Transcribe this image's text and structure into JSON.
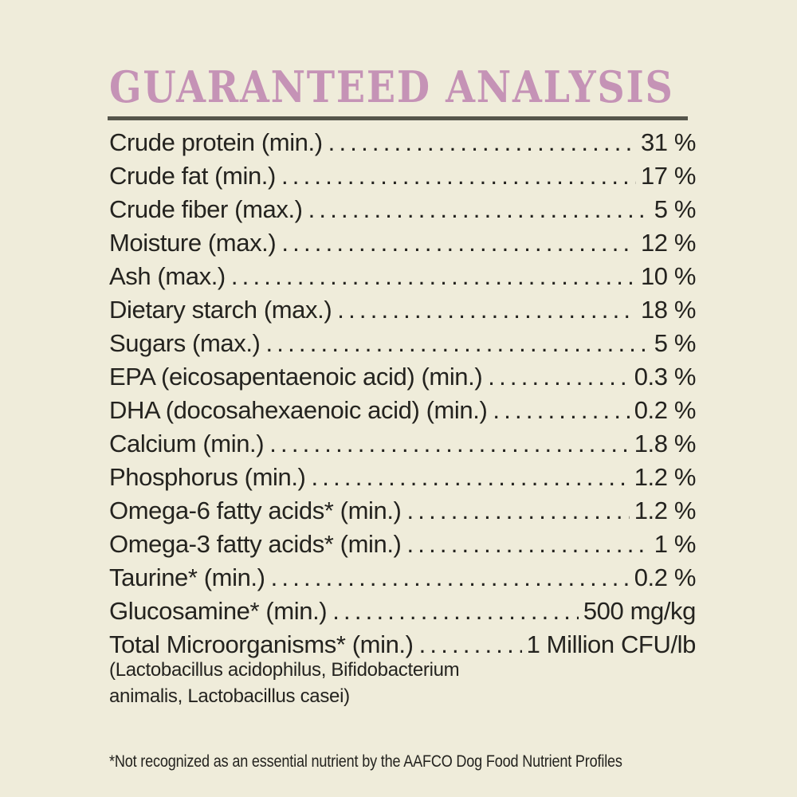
{
  "colors": {
    "background": "#efecda",
    "text": "#24231f",
    "header": "#c593b6",
    "rule": "#55554b"
  },
  "header": {
    "title": "GUARANTEED ANALYSIS"
  },
  "analysis": {
    "rows": [
      {
        "label": "Crude protein (min.)",
        "value": "31 %"
      },
      {
        "label": "Crude fat (min.)",
        "value": "17 %"
      },
      {
        "label": "Crude fiber (max.)",
        "value": "5 %"
      },
      {
        "label": "Moisture (max.)",
        "value": "12 %"
      },
      {
        "label": "Ash (max.)",
        "value": "10 %"
      },
      {
        "label": "Dietary starch (max.)",
        "value": "18 %"
      },
      {
        "label": "Sugars (max.)",
        "value": "5 %"
      },
      {
        "label": "EPA (eicosapentaenoic acid) (min.)",
        "value": "0.3 %"
      },
      {
        "label": "DHA (docosahexaenoic acid) (min.)",
        "value": "0.2 %"
      },
      {
        "label": "Calcium (min.)",
        "value": "1.8 %"
      },
      {
        "label": "Phosphorus (min.)",
        "value": "1.2 %"
      },
      {
        "label": "Omega-6 fatty acids* (min.)",
        "value": "1.2 %"
      },
      {
        "label": "Omega-3 fatty acids* (min.)",
        "value": "1 %"
      },
      {
        "label": "Taurine* (min.)",
        "value": "0.2 %"
      },
      {
        "label": "Glucosamine* (min.)",
        "value": "500 mg/kg"
      },
      {
        "label": "Total Microorganisms* (min.)",
        "value": "1 Million CFU/lb"
      }
    ]
  },
  "microorganisms_note": {
    "lines": [
      "(Lactobacillus acidophilus, Bifidobacterium",
      "animalis, Lactobacillus casei)"
    ]
  },
  "footnote": {
    "text": "*Not recognized as an essential nutrient by the AAFCO Dog Food Nutrient Profiles"
  }
}
